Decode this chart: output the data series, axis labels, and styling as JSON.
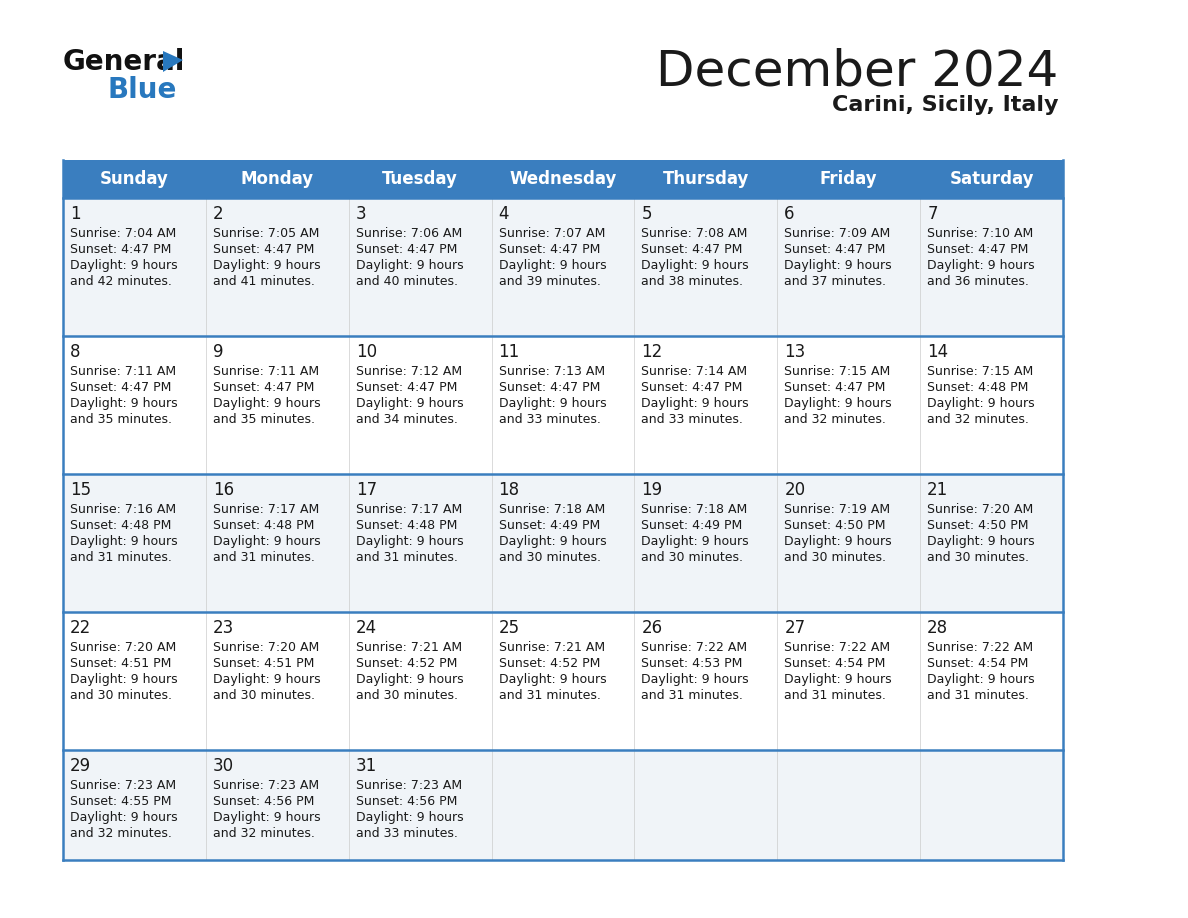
{
  "title": "December 2024",
  "subtitle": "Carini, Sicily, Italy",
  "header_color": "#3a7ebf",
  "header_text_color": "#ffffff",
  "cell_bg_even": "#f0f4f8",
  "cell_bg_odd": "#ffffff",
  "border_color": "#3a7ebf",
  "text_color": "#1a1a1a",
  "days_of_week": [
    "Sunday",
    "Monday",
    "Tuesday",
    "Wednesday",
    "Thursday",
    "Friday",
    "Saturday"
  ],
  "weeks": [
    [
      {
        "day": 1,
        "sunrise": "7:04 AM",
        "sunset": "4:47 PM",
        "daylight_hours": 9,
        "daylight_minutes": 42
      },
      {
        "day": 2,
        "sunrise": "7:05 AM",
        "sunset": "4:47 PM",
        "daylight_hours": 9,
        "daylight_minutes": 41
      },
      {
        "day": 3,
        "sunrise": "7:06 AM",
        "sunset": "4:47 PM",
        "daylight_hours": 9,
        "daylight_minutes": 40
      },
      {
        "day": 4,
        "sunrise": "7:07 AM",
        "sunset": "4:47 PM",
        "daylight_hours": 9,
        "daylight_minutes": 39
      },
      {
        "day": 5,
        "sunrise": "7:08 AM",
        "sunset": "4:47 PM",
        "daylight_hours": 9,
        "daylight_minutes": 38
      },
      {
        "day": 6,
        "sunrise": "7:09 AM",
        "sunset": "4:47 PM",
        "daylight_hours": 9,
        "daylight_minutes": 37
      },
      {
        "day": 7,
        "sunrise": "7:10 AM",
        "sunset": "4:47 PM",
        "daylight_hours": 9,
        "daylight_minutes": 36
      }
    ],
    [
      {
        "day": 8,
        "sunrise": "7:11 AM",
        "sunset": "4:47 PM",
        "daylight_hours": 9,
        "daylight_minutes": 35
      },
      {
        "day": 9,
        "sunrise": "7:11 AM",
        "sunset": "4:47 PM",
        "daylight_hours": 9,
        "daylight_minutes": 35
      },
      {
        "day": 10,
        "sunrise": "7:12 AM",
        "sunset": "4:47 PM",
        "daylight_hours": 9,
        "daylight_minutes": 34
      },
      {
        "day": 11,
        "sunrise": "7:13 AM",
        "sunset": "4:47 PM",
        "daylight_hours": 9,
        "daylight_minutes": 33
      },
      {
        "day": 12,
        "sunrise": "7:14 AM",
        "sunset": "4:47 PM",
        "daylight_hours": 9,
        "daylight_minutes": 33
      },
      {
        "day": 13,
        "sunrise": "7:15 AM",
        "sunset": "4:47 PM",
        "daylight_hours": 9,
        "daylight_minutes": 32
      },
      {
        "day": 14,
        "sunrise": "7:15 AM",
        "sunset": "4:48 PM",
        "daylight_hours": 9,
        "daylight_minutes": 32
      }
    ],
    [
      {
        "day": 15,
        "sunrise": "7:16 AM",
        "sunset": "4:48 PM",
        "daylight_hours": 9,
        "daylight_minutes": 31
      },
      {
        "day": 16,
        "sunrise": "7:17 AM",
        "sunset": "4:48 PM",
        "daylight_hours": 9,
        "daylight_minutes": 31
      },
      {
        "day": 17,
        "sunrise": "7:17 AM",
        "sunset": "4:48 PM",
        "daylight_hours": 9,
        "daylight_minutes": 31
      },
      {
        "day": 18,
        "sunrise": "7:18 AM",
        "sunset": "4:49 PM",
        "daylight_hours": 9,
        "daylight_minutes": 30
      },
      {
        "day": 19,
        "sunrise": "7:18 AM",
        "sunset": "4:49 PM",
        "daylight_hours": 9,
        "daylight_minutes": 30
      },
      {
        "day": 20,
        "sunrise": "7:19 AM",
        "sunset": "4:50 PM",
        "daylight_hours": 9,
        "daylight_minutes": 30
      },
      {
        "day": 21,
        "sunrise": "7:20 AM",
        "sunset": "4:50 PM",
        "daylight_hours": 9,
        "daylight_minutes": 30
      }
    ],
    [
      {
        "day": 22,
        "sunrise": "7:20 AM",
        "sunset": "4:51 PM",
        "daylight_hours": 9,
        "daylight_minutes": 30
      },
      {
        "day": 23,
        "sunrise": "7:20 AM",
        "sunset": "4:51 PM",
        "daylight_hours": 9,
        "daylight_minutes": 30
      },
      {
        "day": 24,
        "sunrise": "7:21 AM",
        "sunset": "4:52 PM",
        "daylight_hours": 9,
        "daylight_minutes": 30
      },
      {
        "day": 25,
        "sunrise": "7:21 AM",
        "sunset": "4:52 PM",
        "daylight_hours": 9,
        "daylight_minutes": 31
      },
      {
        "day": 26,
        "sunrise": "7:22 AM",
        "sunset": "4:53 PM",
        "daylight_hours": 9,
        "daylight_minutes": 31
      },
      {
        "day": 27,
        "sunrise": "7:22 AM",
        "sunset": "4:54 PM",
        "daylight_hours": 9,
        "daylight_minutes": 31
      },
      {
        "day": 28,
        "sunrise": "7:22 AM",
        "sunset": "4:54 PM",
        "daylight_hours": 9,
        "daylight_minutes": 31
      }
    ],
    [
      {
        "day": 29,
        "sunrise": "7:23 AM",
        "sunset": "4:55 PM",
        "daylight_hours": 9,
        "daylight_minutes": 32
      },
      {
        "day": 30,
        "sunrise": "7:23 AM",
        "sunset": "4:56 PM",
        "daylight_hours": 9,
        "daylight_minutes": 32
      },
      {
        "day": 31,
        "sunrise": "7:23 AM",
        "sunset": "4:56 PM",
        "daylight_hours": 9,
        "daylight_minutes": 33
      },
      null,
      null,
      null,
      null
    ]
  ],
  "logo_text_general": "General",
  "logo_text_blue": "Blue",
  "logo_color_general": "#111111",
  "logo_color_blue": "#2878be"
}
